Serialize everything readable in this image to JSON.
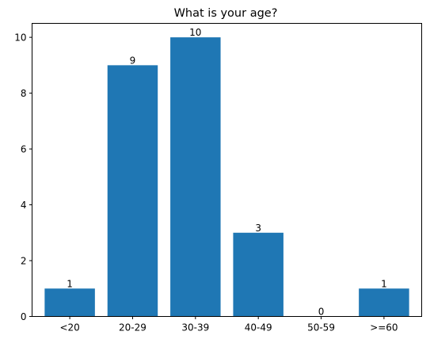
{
  "chart_data": {
    "type": "bar",
    "title": "What is your age?",
    "xlabel": "",
    "ylabel": "",
    "categories": [
      "<20",
      "20-29",
      "30-39",
      "40-49",
      "50-59",
      ">=60"
    ],
    "values": [
      1,
      9,
      10,
      3,
      0,
      1
    ],
    "data_labels": [
      "1",
      "9",
      "10",
      "3",
      "0",
      "1"
    ],
    "ylim": [
      0,
      10.5
    ],
    "yticks": [
      0,
      2,
      4,
      6,
      8,
      10
    ],
    "ytick_labels": [
      "0",
      "2",
      "4",
      "6",
      "8",
      "10"
    ],
    "grid": false,
    "bar_color": "#1f77b4"
  }
}
